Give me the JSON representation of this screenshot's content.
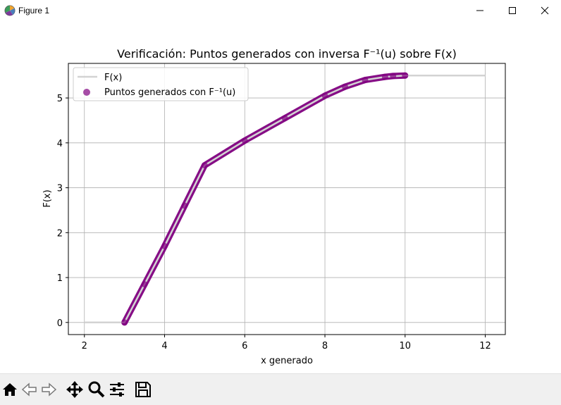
{
  "window": {
    "title": "Figure 1",
    "icon": "matplotlib-figure-icon",
    "controls": [
      "minimize-icon",
      "maximize-icon",
      "close-icon"
    ]
  },
  "toolbar": {
    "buttons": [
      "home-icon",
      "back-icon",
      "forward-icon",
      "pan-icon",
      "zoom-icon",
      "configure-subplots-icon",
      "save-icon"
    ]
  },
  "chart_data": {
    "type": "line",
    "title": "Verificación: Puntos generados con inversa F⁻¹(u) sobre F(x)",
    "xlabel": "x generado",
    "ylabel": "F(x)",
    "xlim": [
      1.6,
      12.5
    ],
    "ylim": [
      -0.27,
      5.77
    ],
    "xticks": [
      2,
      4,
      6,
      8,
      10,
      12
    ],
    "yticks": [
      0,
      1,
      2,
      3,
      4,
      5
    ],
    "grid": true,
    "legend_position": "top-left",
    "series": [
      {
        "name": "F(x)",
        "kind": "line",
        "color": "#d3d3d3",
        "points": [
          [
            2,
            0
          ],
          [
            3,
            0
          ],
          [
            3.5,
            0.85
          ],
          [
            4,
            1.7
          ],
          [
            4.5,
            2.6
          ],
          [
            5,
            3.5
          ],
          [
            6,
            4.05
          ],
          [
            7,
            4.55
          ],
          [
            8,
            5.05
          ],
          [
            8.5,
            5.25
          ],
          [
            9,
            5.4
          ],
          [
            9.5,
            5.47
          ],
          [
            10,
            5.5
          ],
          [
            12,
            5.5
          ]
        ]
      },
      {
        "name": "Puntos generados con F⁻¹(u)",
        "kind": "scatter",
        "color": "#800080",
        "points": [
          [
            3,
            0
          ],
          [
            3.5,
            0.85
          ],
          [
            4,
            1.7
          ],
          [
            4.5,
            2.6
          ],
          [
            5,
            3.5
          ],
          [
            6,
            4.05
          ],
          [
            7,
            4.55
          ],
          [
            8,
            5.05
          ],
          [
            8.5,
            5.25
          ],
          [
            9,
            5.4
          ],
          [
            9.5,
            5.47
          ],
          [
            9.7,
            5.49
          ],
          [
            10,
            5.5
          ]
        ]
      }
    ]
  }
}
